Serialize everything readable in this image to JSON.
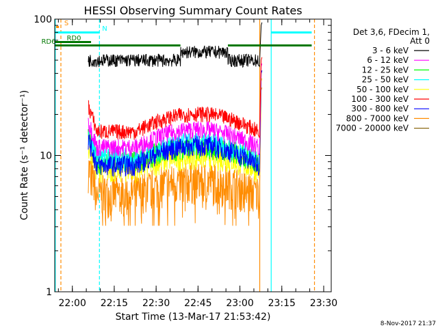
{
  "chart_data": {
    "type": "line",
    "title": "HESSI Observing Summary Count Rates",
    "xlabel": "Start Time (13-Mar-17 21:53:42)",
    "ylabel": "Count Rate (s⁻¹ detector⁻¹)",
    "x_range_min": [
      0,
      99
    ],
    "x_ticks": [
      {
        "min": 6.3,
        "label": "22:00"
      },
      {
        "min": 21.3,
        "label": "22:15"
      },
      {
        "min": 36.3,
        "label": "22:30"
      },
      {
        "min": 51.3,
        "label": "22:45"
      },
      {
        "min": 66.3,
        "label": "23:00"
      },
      {
        "min": 81.3,
        "label": "23:15"
      },
      {
        "min": 96.3,
        "label": "23:30"
      }
    ],
    "y_scale": "log",
    "ylim": [
      1,
      100
    ],
    "y_ticks": [
      {
        "value": 1,
        "label": "1"
      },
      {
        "value": 10,
        "label": "10"
      },
      {
        "value": 100,
        "label": "100"
      }
    ],
    "legend_header": [
      "Det 3,6, FDecim 1,",
      "Att 0"
    ],
    "series": [
      {
        "name": "3 - 6 keV",
        "color": "#000000",
        "start": 12,
        "end": 73,
        "base": 50,
        "amp": 1.0,
        "noise": 0.05,
        "spike": 90
      },
      {
        "name": "6 - 12 keV",
        "color": "#ff00ff",
        "start": 12,
        "end": 73,
        "base": 11.5,
        "amp": 1.35,
        "noise": 0.07,
        "spike": 45
      },
      {
        "name": "12 - 25 keV",
        "color": "#00ff00",
        "start": 12,
        "end": 73,
        "base": 9.0,
        "amp": 1.3,
        "noise": 0.09,
        "spike": 40
      },
      {
        "name": "25 - 50 keV",
        "color": "#00ffff",
        "start": 12,
        "end": 73,
        "base": 9.5,
        "amp": 1.3,
        "noise": 0.09,
        "spike": 40
      },
      {
        "name": "50 - 100 keV",
        "color": "#ffff00",
        "start": 12,
        "end": 73,
        "base": 8.0,
        "amp": 1.25,
        "noise": 0.1,
        "spike": 35
      },
      {
        "name": "100 - 300 keV",
        "color": "#ff0000",
        "start": 12,
        "end": 73,
        "base": 15,
        "amp": 1.35,
        "noise": 0.06,
        "spike": 50
      },
      {
        "name": "300 - 800 keV",
        "color": "#0000ff",
        "start": 12,
        "end": 73,
        "base": 8.5,
        "amp": 1.4,
        "noise": 0.08,
        "spike": 40
      },
      {
        "name": "800 - 7000 keV",
        "color": "#ff8c00",
        "start": 12,
        "end": 73,
        "base": 5.3,
        "amp": 1.25,
        "noise": 0.16,
        "spike": 30
      },
      {
        "name": "7000 - 20000 keV",
        "color": "#8b6914",
        "start": 12,
        "end": 73,
        "base": 0,
        "amp": 0,
        "noise": 0,
        "spike": 0
      }
    ],
    "flag_bars": [
      {
        "label": "S",
        "color": "#ff8c00",
        "segments": [
          [
            0.5,
            1.5
          ]
        ]
      },
      {
        "label": "N",
        "color": "#00ffff",
        "segments": [
          [
            0,
            16
          ],
          [
            77.5,
            92
          ]
        ]
      },
      {
        "label": "RD0",
        "color": "#007700",
        "segments": [
          [
            0,
            13
          ]
        ]
      },
      {
        "label": "RD6",
        "color": "#007700",
        "segments": [
          [
            0,
            45
          ],
          [
            62,
            92
          ]
        ]
      }
    ],
    "vlines": [
      {
        "min": 0.2,
        "color": "#00ffff",
        "style": "solid"
      },
      {
        "min": 2.2,
        "color": "#ff8c00",
        "style": "dashed"
      },
      {
        "min": 16,
        "color": "#00ffff",
        "style": "dashed"
      },
      {
        "min": 73.4,
        "color": "#ff8c00",
        "style": "solid"
      },
      {
        "min": 77.5,
        "color": "#00ffff",
        "style": "solid"
      },
      {
        "min": 93,
        "color": "#ff8c00",
        "style": "dashed"
      }
    ]
  },
  "footer_date": "8-Nov-2017 21:37"
}
